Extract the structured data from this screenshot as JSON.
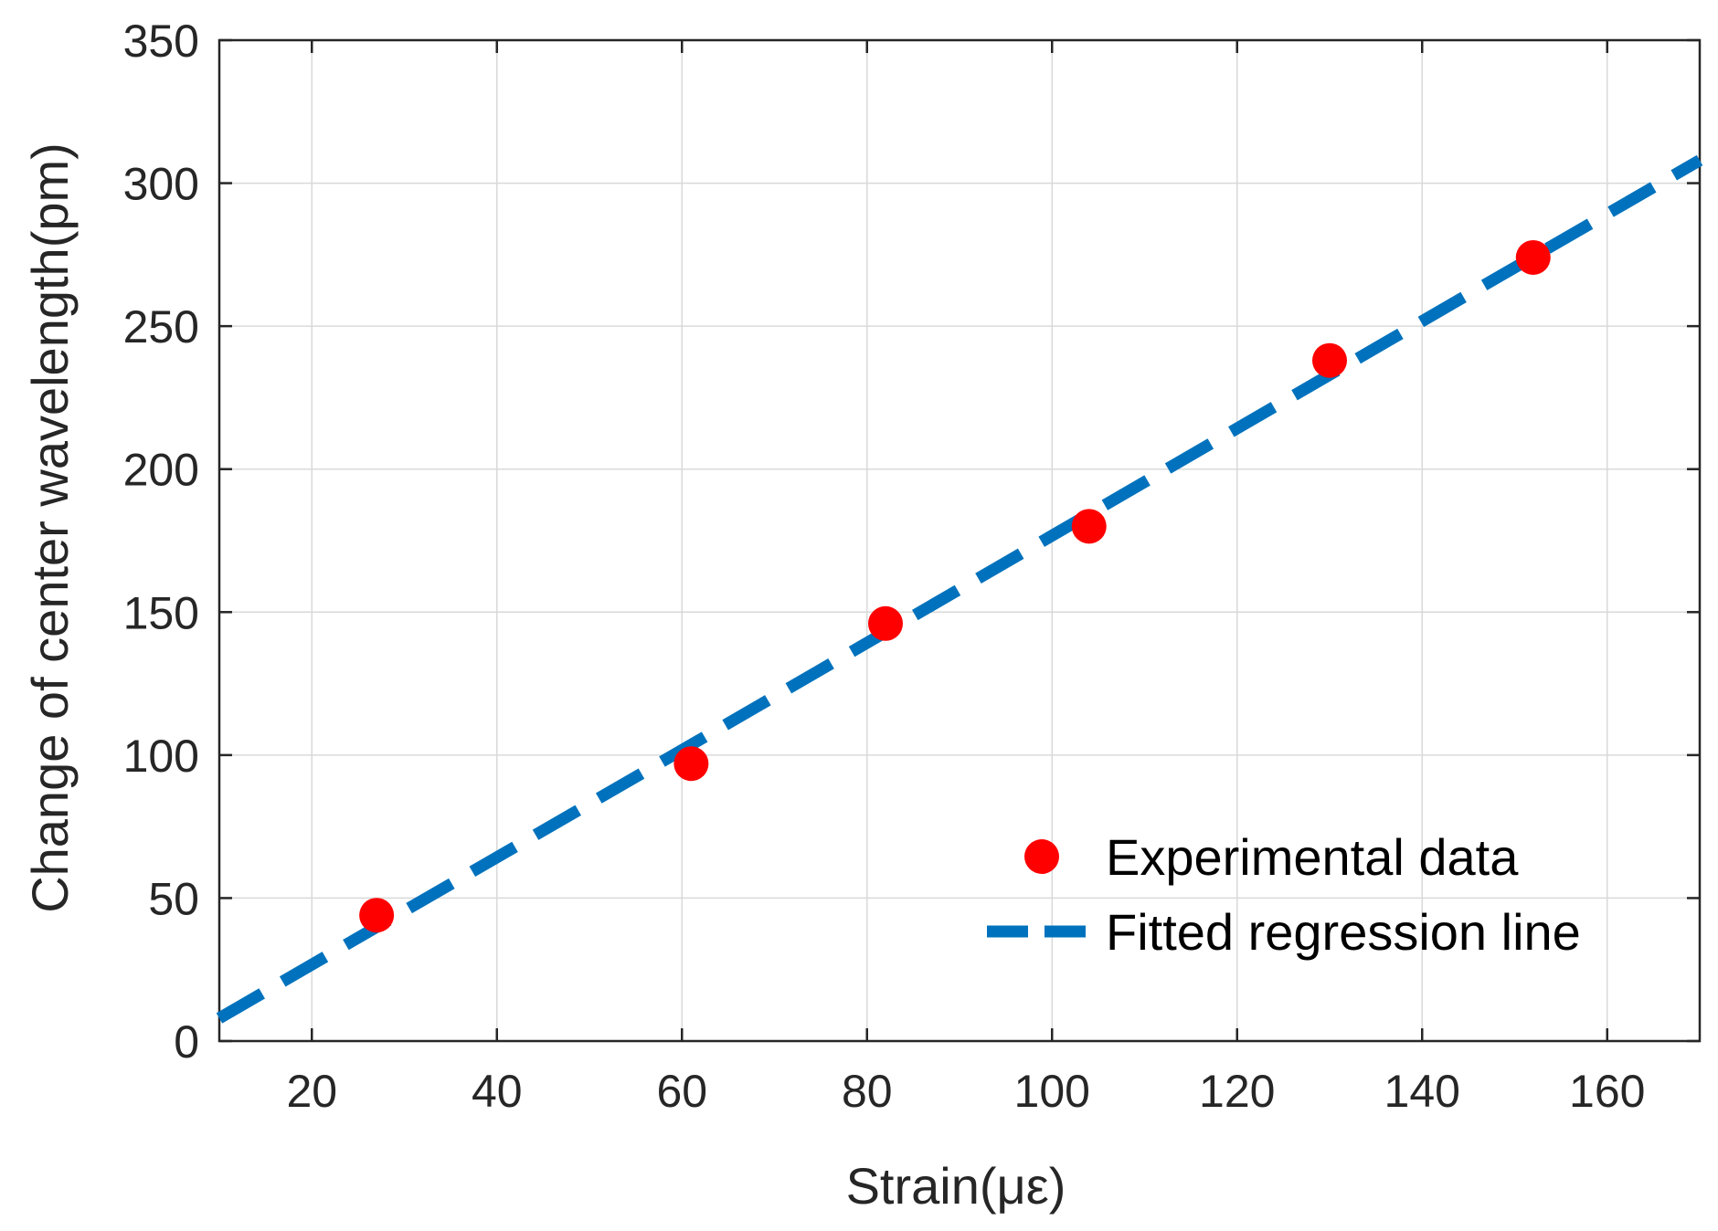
{
  "chart_data": {
    "type": "scatter",
    "title": "",
    "xlabel": "Strain(με)",
    "ylabel": "Change of center wavelength(pm)",
    "xlim": [
      10,
      170
    ],
    "ylim": [
      0,
      350
    ],
    "xticks": [
      20,
      40,
      60,
      80,
      100,
      120,
      140,
      160
    ],
    "yticks": [
      0,
      50,
      100,
      150,
      200,
      250,
      300,
      350
    ],
    "grid": true,
    "legend_position": "bottom-right",
    "series": [
      {
        "name": "Experimental data",
        "kind": "markers",
        "color": "#ff0000",
        "x": [
          27,
          61,
          82,
          104,
          130,
          152
        ],
        "y": [
          44,
          97,
          146,
          180,
          238,
          274
        ]
      },
      {
        "name": "Fitted regression line",
        "kind": "dashed-line",
        "color": "#0072bd",
        "x": [
          10,
          170
        ],
        "y": [
          8,
          308
        ]
      }
    ]
  }
}
